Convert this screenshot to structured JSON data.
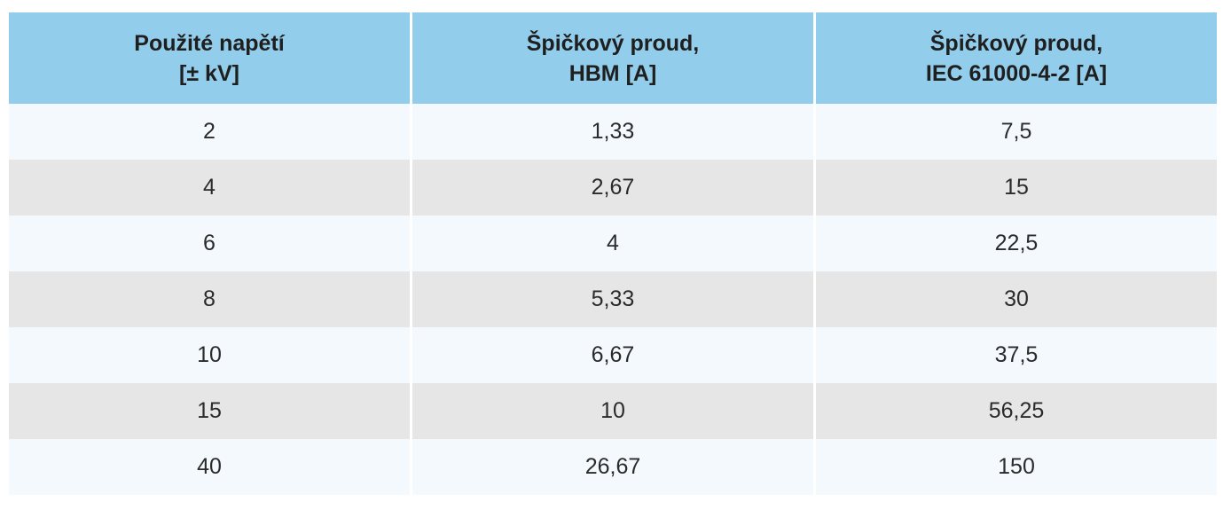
{
  "table": {
    "headers": [
      {
        "line1": "Použité napětí",
        "line2": "[± kV]"
      },
      {
        "line1": "Špičkový proud,",
        "line2": "HBM [A]"
      },
      {
        "line1": "Špičkový proud,",
        "line2": "IEC 61000-4-2 [A]"
      }
    ],
    "rows": [
      [
        "2",
        "1,33",
        "7,5"
      ],
      [
        "4",
        "2,67",
        "15"
      ],
      [
        "6",
        "4",
        "22,5"
      ],
      [
        "8",
        "5,33",
        "30"
      ],
      [
        "10",
        "6,67",
        "37,5"
      ],
      [
        "15",
        "10",
        "56,25"
      ],
      [
        "40",
        "26,67",
        "150"
      ]
    ],
    "colors": {
      "header_bg": "#92cdeb",
      "row_light": "#f3f9fc",
      "row_dark": "#e6e6e6"
    }
  }
}
